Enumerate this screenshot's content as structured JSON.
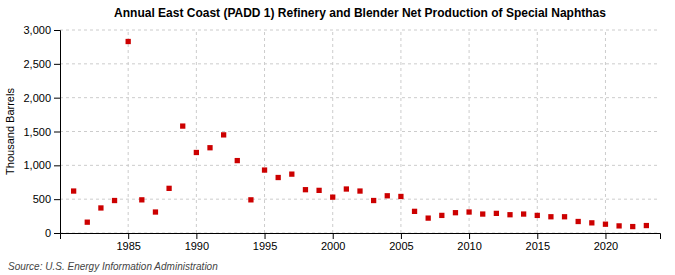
{
  "chart_data": {
    "type": "scatter",
    "title": "Annual East Coast (PADD 1) Refinery and Blender Net Production of Special Naphthas",
    "ylabel": "Thousand Barrels",
    "annotations": [
      "Source: U.S. Energy Information Administration"
    ],
    "x": [
      1981,
      1982,
      1983,
      1984,
      1985,
      1986,
      1987,
      1988,
      1989,
      1990,
      1991,
      1992,
      1993,
      1994,
      1995,
      1996,
      1997,
      1998,
      1999,
      2000,
      2001,
      2002,
      2003,
      2004,
      2005,
      2006,
      2007,
      2008,
      2009,
      2010,
      2011,
      2012,
      2013,
      2014,
      2015,
      2016,
      2017,
      2018,
      2019,
      2020,
      2021,
      2022,
      2023
    ],
    "values": [
      620,
      160,
      370,
      480,
      2830,
      490,
      310,
      660,
      1580,
      1190,
      1260,
      1450,
      1070,
      490,
      930,
      820,
      870,
      640,
      630,
      530,
      650,
      620,
      480,
      550,
      540,
      320,
      220,
      260,
      300,
      310,
      280,
      290,
      270,
      280,
      260,
      240,
      240,
      170,
      150,
      130,
      105,
      95,
      110
    ],
    "color": "#cc0000",
    "marker": "square",
    "xlim": [
      1980,
      2024
    ],
    "xticks": [
      1985,
      1990,
      1995,
      2000,
      2005,
      2010,
      2015,
      2020
    ],
    "ylim": [
      0,
      3000
    ],
    "yticks": [
      0,
      500,
      {
        "value": 1000,
        "label": "1,000"
      },
      {
        "value": 1500,
        "label": "1,500"
      },
      {
        "value": 2000,
        "label": "2,000"
      },
      {
        "value": 2500,
        "label": "2,500"
      },
      {
        "value": 3000,
        "label": "3,000"
      }
    ],
    "grid": true
  }
}
